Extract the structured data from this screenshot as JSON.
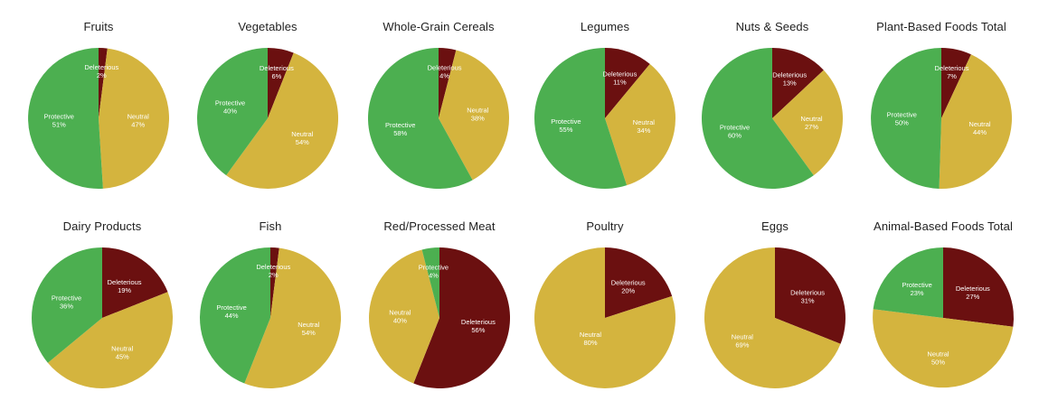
{
  "colors": {
    "Protective": "#4caf50",
    "Neutral": "#d4b43e",
    "Deleterious": "#6b1010",
    "background": "#ffffff"
  },
  "chart_data": [
    {
      "type": "pie",
      "title": "Fruits",
      "slices": [
        {
          "label": "Deleterious",
          "value": 2,
          "display": "2%"
        },
        {
          "label": "Neutral",
          "value": 47,
          "display": "47%"
        },
        {
          "label": "Protective",
          "value": 51,
          "display": "51%"
        }
      ]
    },
    {
      "type": "pie",
      "title": "Vegetables",
      "slices": [
        {
          "label": "Deleterious",
          "value": 6,
          "display": "6%"
        },
        {
          "label": "Neutral",
          "value": 54,
          "display": "54%"
        },
        {
          "label": "Protective",
          "value": 40,
          "display": "40%"
        }
      ]
    },
    {
      "type": "pie",
      "title": "Whole-Grain Cereals",
      "slices": [
        {
          "label": "Deleterious",
          "value": 4,
          "display": "4%"
        },
        {
          "label": "Neutral",
          "value": 38,
          "display": "38%"
        },
        {
          "label": "Protective",
          "value": 58,
          "display": "58%"
        }
      ]
    },
    {
      "type": "pie",
      "title": "Legumes",
      "slices": [
        {
          "label": "Deleterious",
          "value": 11,
          "display": "11%"
        },
        {
          "label": "Neutral",
          "value": 34,
          "display": "34%"
        },
        {
          "label": "Protective",
          "value": 55,
          "display": "55%"
        }
      ]
    },
    {
      "type": "pie",
      "title": "Nuts & Seeds",
      "slices": [
        {
          "label": "Deleterious",
          "value": 13,
          "display": "13%"
        },
        {
          "label": "Neutral",
          "value": 27,
          "display": "27%"
        },
        {
          "label": "Protective",
          "value": 60,
          "display": "60%"
        }
      ]
    },
    {
      "type": "pie",
      "title": "Plant-Based Foods Total",
      "slices": [
        {
          "label": "Deleterious",
          "value": 7,
          "display": "7%"
        },
        {
          "label": "Neutral",
          "value": 44,
          "display": "44%"
        },
        {
          "label": "Protective",
          "value": 50,
          "display": "50%"
        }
      ]
    },
    {
      "type": "pie",
      "title": "Dairy Products",
      "slices": [
        {
          "label": "Deleterious",
          "value": 19,
          "display": "19%"
        },
        {
          "label": "Neutral",
          "value": 45,
          "display": "45%"
        },
        {
          "label": "Protective",
          "value": 36,
          "display": "36%"
        }
      ]
    },
    {
      "type": "pie",
      "title": "Fish",
      "slices": [
        {
          "label": "Deleterious",
          "value": 2,
          "display": "2%"
        },
        {
          "label": "Neutral",
          "value": 54,
          "display": "54%"
        },
        {
          "label": "Protective",
          "value": 44,
          "display": "44%"
        }
      ]
    },
    {
      "type": "pie",
      "title": "Red/Processed Meat",
      "slices": [
        {
          "label": "Deleterious",
          "value": 56,
          "display": "56%"
        },
        {
          "label": "Neutral",
          "value": 40,
          "display": "40%"
        },
        {
          "label": "Protective",
          "value": 4,
          "display": "4%"
        }
      ]
    },
    {
      "type": "pie",
      "title": "Poultry",
      "slices": [
        {
          "label": "Deleterious",
          "value": 20,
          "display": "20%"
        },
        {
          "label": "Neutral",
          "value": 80,
          "display": "80%"
        }
      ]
    },
    {
      "type": "pie",
      "title": "Eggs",
      "slices": [
        {
          "label": "Deleterious",
          "value": 31,
          "display": "31%"
        },
        {
          "label": "Neutral",
          "value": 69,
          "display": "69%"
        }
      ]
    },
    {
      "type": "pie",
      "title": "Animal-Based Foods Total",
      "slices": [
        {
          "label": "Deleterious",
          "value": 27,
          "display": "27%"
        },
        {
          "label": "Neutral",
          "value": 50,
          "display": "50%"
        },
        {
          "label": "Protective",
          "value": 23,
          "display": "23%"
        }
      ]
    }
  ]
}
